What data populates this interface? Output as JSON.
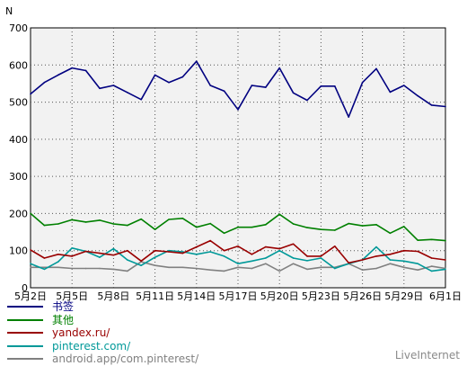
{
  "chart_data": {
    "type": "line",
    "ylabel": "N",
    "ylim": [
      0,
      700
    ],
    "yticks": [
      0,
      100,
      200,
      300,
      400,
      500,
      600,
      700
    ],
    "grid": true,
    "legend_position": "bottom-left",
    "x": [
      "5月2日",
      "5月3日",
      "5月4日",
      "5月5日",
      "5月6日",
      "5月7日",
      "5月8日",
      "5月9日",
      "5月10日",
      "5月11日",
      "5月12日",
      "5月13日",
      "5月14日",
      "5月15日",
      "5月16日",
      "5月17日",
      "5月18日",
      "5月19日",
      "5月20日",
      "5月21日",
      "5月22日",
      "5月23日",
      "5月24日",
      "5月25日",
      "5月26日",
      "5月27日",
      "5月28日",
      "5月29日",
      "5月30日",
      "5月31日",
      "6月1日"
    ],
    "xtick_labels": [
      "5月2日",
      "5月5日",
      "5月8日",
      "5月11日",
      "5月14日",
      "5月17日",
      "5月20日",
      "5月23日",
      "5月26日",
      "5月29日",
      "6月1日"
    ],
    "series": [
      {
        "name": "书签",
        "color": "#000080",
        "values": [
          522,
          553,
          573,
          592,
          585,
          537,
          545,
          526,
          507,
          573,
          553,
          568,
          610,
          545,
          530,
          480,
          545,
          540,
          592,
          525,
          505,
          543,
          543,
          460,
          553,
          590,
          527,
          545,
          517,
          492,
          488
        ]
      },
      {
        "name": "其他",
        "color": "#008000",
        "values": [
          200,
          168,
          172,
          183,
          177,
          182,
          172,
          168,
          185,
          157,
          184,
          187,
          163,
          173,
          147,
          163,
          163,
          170,
          198,
          172,
          162,
          157,
          155,
          173,
          167,
          170,
          147,
          165,
          128,
          130,
          127
        ]
      },
      {
        "name": "yandex.ru/",
        "color": "#990000",
        "values": [
          102,
          80,
          90,
          85,
          98,
          93,
          88,
          100,
          72,
          100,
          97,
          93,
          110,
          127,
          100,
          112,
          90,
          110,
          105,
          118,
          85,
          85,
          112,
          67,
          75,
          85,
          90,
          100,
          98,
          80,
          75
        ]
      },
      {
        "name": "pinterest.com/",
        "color": "#009999",
        "values": [
          65,
          50,
          70,
          107,
          98,
          82,
          105,
          75,
          60,
          82,
          100,
          97,
          90,
          97,
          85,
          65,
          72,
          80,
          100,
          80,
          73,
          80,
          52,
          65,
          75,
          110,
          75,
          72,
          65,
          45,
          50
        ]
      },
      {
        "name": "android.app/com.pinterest/",
        "color": "#808080",
        "values": [
          55,
          55,
          55,
          52,
          52,
          52,
          50,
          45,
          70,
          60,
          55,
          55,
          52,
          48,
          45,
          55,
          52,
          65,
          45,
          65,
          50,
          55,
          55,
          65,
          48,
          52,
          65,
          55,
          48,
          58,
          52
        ]
      }
    ]
  },
  "watermark": "LiveInternet"
}
